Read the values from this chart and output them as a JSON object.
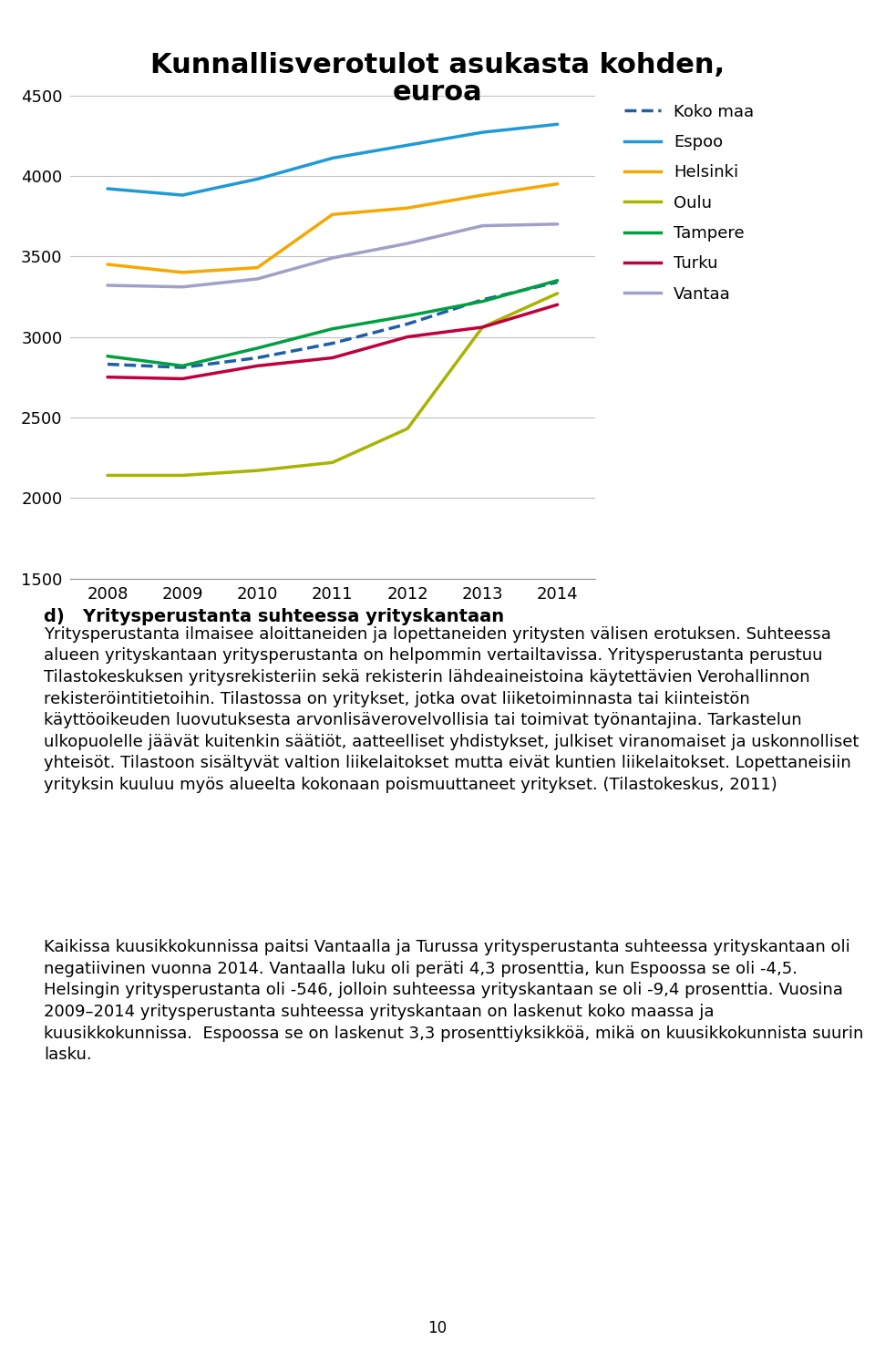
{
  "title_line1": "Kunnallisverotulot asukasta kohden,",
  "title_line2": "euroa",
  "years": [
    2008,
    2009,
    2010,
    2011,
    2012,
    2013,
    2014
  ],
  "series": {
    "Koko maa": {
      "values": [
        2830,
        2810,
        2870,
        2960,
        3080,
        3230,
        3340
      ],
      "color": "#1F5FA6",
      "linestyle": "--",
      "linewidth": 2.5
    },
    "Espoo": {
      "values": [
        3920,
        3880,
        3980,
        4110,
        4190,
        4270,
        4320
      ],
      "color": "#1F9AD6",
      "linestyle": "-",
      "linewidth": 2.5
    },
    "Helsinki": {
      "values": [
        3450,
        3400,
        3430,
        3760,
        3800,
        3880,
        3950
      ],
      "color": "#F5A800",
      "linestyle": "-",
      "linewidth": 2.5
    },
    "Oulu": {
      "values": [
        2140,
        2140,
        2170,
        2220,
        2430,
        3060,
        3270
      ],
      "color": "#A8B400",
      "linestyle": "-",
      "linewidth": 2.5
    },
    "Tampere": {
      "values": [
        2880,
        2820,
        2930,
        3050,
        3130,
        3220,
        3350
      ],
      "color": "#00A040",
      "linestyle": "-",
      "linewidth": 2.5
    },
    "Turku": {
      "values": [
        2750,
        2740,
        2820,
        2870,
        3000,
        3060,
        3200
      ],
      "color": "#C0003C",
      "linestyle": "-",
      "linewidth": 2.5
    },
    "Vantaa": {
      "values": [
        3320,
        3310,
        3360,
        3490,
        3580,
        3690,
        3700
      ],
      "color": "#A0A0C8",
      "linestyle": "-",
      "linewidth": 2.5
    }
  },
  "legend_order": [
    "Koko maa",
    "Espoo",
    "Helsinki",
    "Oulu",
    "Tampere",
    "Turku",
    "Vantaa"
  ],
  "ylim": [
    1500,
    4500
  ],
  "yticks": [
    1500,
    2000,
    2500,
    3000,
    3500,
    4000,
    4500
  ],
  "xlim": [
    2007.5,
    2014.5
  ],
  "background_color": "#ffffff",
  "chart_bg": "#ffffff",
  "grid_color": "#C0C0C0",
  "section_heading": "d)   Yritysperustanta suhteessa yrityskantaan",
  "paragraph1": "Yritysperustanta ilmaisee aloittaneiden ja lopettaneiden yritysten välisen erotuksen. Suhteessa alueen yrityskantaan yritysperustanta on helpommin vertailtavissa. Yritysperustanta perustuu Tilastokeskuksen yritysrekisteriin sekä rekisterin lähdeaineistoina käytettävien Verohallinnon rekisteröintitietoihin. Tilastossa on yritykset, jotka ovat liiketoiminnasta tai kiinteistön käyttöoikeuden luovutuksesta arvonlisäverovelvollisia tai toimivat työnantajina. Tarkastelun ulkopuolelle jäävät kuitenkin säätiöt, aatteelliset yhdistykset, julkiset viranomaiset ja uskonnolliset yhteisöt. Tilastoon sisältyvät valtion liikelaitokset mutta eivät kuntien liikelaitokset. Lopettaneisiin yrityksin kuuluu myös alueelta kokonaan poismuuttaneet yritykset. (Tilastokeskus, 2011)",
  "paragraph2": "Kaikissa kuusikkokunnissa paitsi Vantaalla ja Turussa yritysperustanta suhteessa yrityskantaan oli negatiivinen vuonna 2014. Vantaalla luku oli peräti 4,3 prosenttia, kun Espoossa se oli -4,5. Helsingin yritysperustanta oli -546, jolloin suhteessa yrityskantaan se oli -9,4 prosenttia. Vuosina 2009–2014 yritysperustanta suhteessa yrityskantaan on laskenut koko maassa ja kuusikkokunnissa.  Espoossa se on laskenut 3,3 prosenttiyksikköä, mikä on kuusikkokunnista suurin lasku.",
  "footer": "10",
  "tick_fontsize": 13,
  "legend_fontsize": 13,
  "title_fontsize": 22,
  "body_fontsize": 13,
  "heading_fontsize": 14
}
